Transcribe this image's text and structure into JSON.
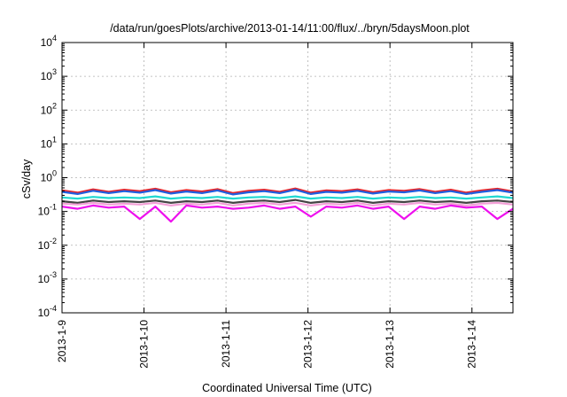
{
  "chart_data": {
    "type": "line",
    "title": "/data/run/goesPlots/archive/2013-01-14/11:00/flux/../bryn/5daysMoon.plot",
    "xlabel": "Coordinated Universal Time (UTC)",
    "ylabel": "cSv/day",
    "y_scale": "log",
    "ylim": [
      0.0001,
      10000
    ],
    "xlim": [
      "2013-01-09T00:00",
      "2013-01-14T12:00"
    ],
    "grid": true,
    "x_ticks": [
      "2013-1-9",
      "2013-1-10",
      "2013-1-11",
      "2013-1-12",
      "2013-1-13",
      "2013-1-14"
    ],
    "y_ticks": [
      {
        "base": "10",
        "exp": "-4"
      },
      {
        "base": "10",
        "exp": "-3"
      },
      {
        "base": "10",
        "exp": "-2"
      },
      {
        "base": "10",
        "exp": "-1"
      },
      {
        "base": "10",
        "exp": "0"
      },
      {
        "base": "10",
        "exp": "1"
      },
      {
        "base": "10",
        "exp": "2"
      },
      {
        "base": "10",
        "exp": "3"
      },
      {
        "base": "10",
        "exp": "4"
      }
    ],
    "series": [
      {
        "color": "#e8262a",
        "values": [
          0.42,
          0.36,
          0.45,
          0.38,
          0.44,
          0.4,
          0.47,
          0.37,
          0.43,
          0.39,
          0.46,
          0.35,
          0.41,
          0.44,
          0.38,
          0.48,
          0.36,
          0.42,
          0.4,
          0.45,
          0.37,
          0.43,
          0.41,
          0.46,
          0.38,
          0.44,
          0.36,
          0.42,
          0.47,
          0.39
        ]
      },
      {
        "color": "#1f5fe0",
        "values": [
          0.38,
          0.33,
          0.41,
          0.35,
          0.4,
          0.36,
          0.43,
          0.34,
          0.39,
          0.35,
          0.42,
          0.32,
          0.37,
          0.4,
          0.35,
          0.44,
          0.33,
          0.38,
          0.36,
          0.41,
          0.34,
          0.39,
          0.37,
          0.42,
          0.35,
          0.4,
          0.33,
          0.38,
          0.43,
          0.36
        ]
      },
      {
        "color": "#20d8d0",
        "values": [
          0.26,
          0.24,
          0.27,
          0.25,
          0.26,
          0.25,
          0.28,
          0.24,
          0.26,
          0.25,
          0.27,
          0.24,
          0.26,
          0.27,
          0.25,
          0.28,
          0.24,
          0.26,
          0.25,
          0.27,
          0.24,
          0.26,
          0.25,
          0.27,
          0.25,
          0.26,
          0.24,
          0.26,
          0.28,
          0.25
        ]
      },
      {
        "color": "#444444",
        "values": [
          0.2,
          0.18,
          0.21,
          0.19,
          0.2,
          0.19,
          0.21,
          0.18,
          0.2,
          0.19,
          0.21,
          0.18,
          0.2,
          0.21,
          0.19,
          0.22,
          0.18,
          0.2,
          0.19,
          0.21,
          0.18,
          0.2,
          0.19,
          0.21,
          0.19,
          0.2,
          0.18,
          0.2,
          0.21,
          0.19
        ]
      },
      {
        "color": "#f4a0d8",
        "values": [
          0.17,
          0.16,
          0.18,
          0.16,
          0.17,
          0.16,
          0.18,
          0.15,
          0.17,
          0.16,
          0.18,
          0.15,
          0.17,
          0.18,
          0.16,
          0.18,
          0.15,
          0.17,
          0.16,
          0.18,
          0.15,
          0.17,
          0.16,
          0.18,
          0.16,
          0.17,
          0.15,
          0.17,
          0.18,
          0.16
        ]
      },
      {
        "color": "#ee10ee",
        "values": [
          0.14,
          0.12,
          0.15,
          0.13,
          0.14,
          0.06,
          0.14,
          0.05,
          0.15,
          0.13,
          0.14,
          0.12,
          0.13,
          0.15,
          0.12,
          0.14,
          0.07,
          0.14,
          0.13,
          0.15,
          0.12,
          0.14,
          0.06,
          0.14,
          0.12,
          0.15,
          0.13,
          0.14,
          0.06,
          0.12
        ]
      }
    ]
  }
}
